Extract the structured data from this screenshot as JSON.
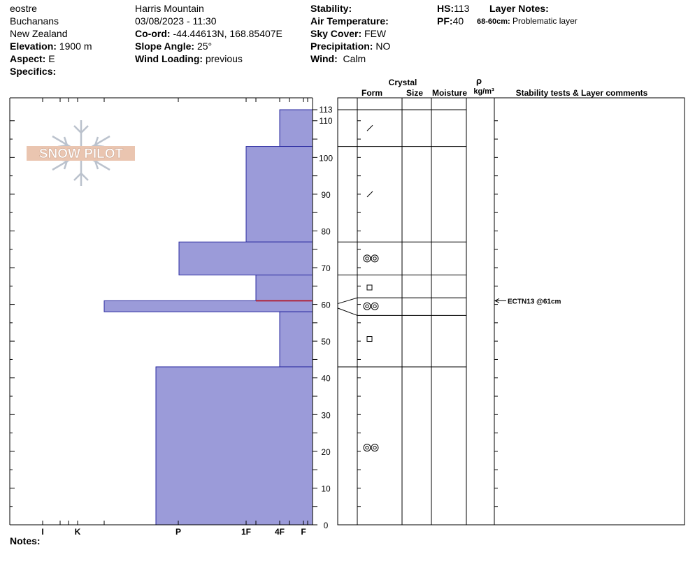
{
  "header": {
    "observer": "eostre",
    "range": "Buchanans",
    "country": "New Zealand",
    "elevation_label": "Elevation:",
    "elevation": "1900 m",
    "aspect_label": "Aspect:",
    "aspect": "E",
    "specifics_label": "Specifics:",
    "location": "Harris Mountain",
    "datetime": "03/08/2023 - 11:30",
    "coord_label": "Co-ord:",
    "coord": "-44.44613N, 168.85407E",
    "slope_label": "Slope Angle:",
    "slope": "25°",
    "wind_loading_label": "Wind Loading:",
    "wind_loading": "previous",
    "stability_label": "Stability:",
    "air_temp_label": "Air Temperature:",
    "sky_label": "Sky Cover:",
    "sky": "FEW",
    "precip_label": "Precipitation:",
    "precip": "NO",
    "wind_label": "Wind:",
    "wind": "Calm",
    "hs_label": "HS:",
    "hs": "113",
    "pf_label": "PF:",
    "pf": "40",
    "layer_notes_label": "Layer Notes:",
    "layer_note_depth": "68-60cm:",
    "layer_note_text": "Problematic layer"
  },
  "logo": {
    "text": "SNOW PILOT"
  },
  "notes_label": "Notes:",
  "columns": {
    "crystal": "Crystal",
    "form": "Form",
    "size": "Size",
    "moisture": "Moisture",
    "rho": "ρ",
    "density_unit": "kg/m³",
    "stability": "Stability tests & Layer comments"
  },
  "colors": {
    "hardness_fill": "#9b9bd9",
    "hardness_stroke": "#2a2aa0",
    "problem_line": "#b0243a"
  },
  "chart_data": {
    "type": "bar",
    "orientation": "horizontal",
    "y_label": "",
    "y_range": [
      0,
      113
    ],
    "y_ticks": [
      0,
      10,
      20,
      30,
      40,
      50,
      60,
      70,
      80,
      90,
      100,
      110,
      113
    ],
    "hardness_scale": [
      "I",
      "K",
      "P",
      "1F",
      "4F",
      "F"
    ],
    "layers": [
      {
        "top": 113,
        "bottom": 103,
        "hardness": "4F",
        "form_icon": "slash"
      },
      {
        "top": 103,
        "bottom": 77,
        "hardness": "1F",
        "form_icon": "slash"
      },
      {
        "top": 77,
        "bottom": 68,
        "hardness": "P-",
        "form_icon": "double-circle"
      },
      {
        "top": 68,
        "bottom": 61,
        "hardness": "1F-",
        "form_icon": "square"
      },
      {
        "top": 61,
        "bottom": 58,
        "hardness": "K-",
        "form_icon": "double-circle"
      },
      {
        "top": 58,
        "bottom": 43,
        "hardness": "4F",
        "form_icon": "square"
      },
      {
        "top": 43,
        "bottom": 0,
        "hardness": "P+",
        "form_icon": "double-circle"
      }
    ],
    "problem_layer_depth": 61,
    "stability_tests": [
      {
        "depth": 61,
        "label": "ECTN13 @61cm"
      }
    ]
  }
}
